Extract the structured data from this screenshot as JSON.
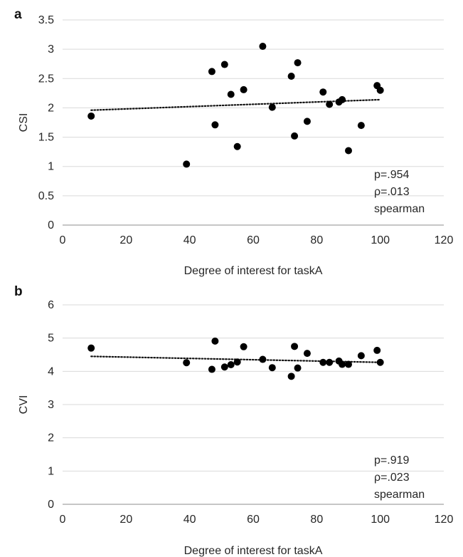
{
  "chart_data": [
    {
      "type": "scatter",
      "panel_label": "a",
      "xlabel": "Degree of interest for taskA",
      "ylabel": "CSI",
      "xlim": [
        0,
        120
      ],
      "ylim": [
        0,
        3.5
      ],
      "x_ticks": [
        "0",
        "20",
        "40",
        "60",
        "80",
        "100",
        "120"
      ],
      "y_ticks": [
        "0",
        "0.5",
        "1",
        "1.5",
        "2",
        "2.5",
        "3",
        "3.5"
      ],
      "grid": "horizontal",
      "trendline": "linear dotted",
      "trend_start": [
        9,
        1.96
      ],
      "trend_end": [
        100,
        2.14
      ],
      "annotation": [
        "p=.954",
        "ρ=.013",
        "spearman"
      ],
      "points": [
        {
          "x": 9,
          "y": 1.86
        },
        {
          "x": 39,
          "y": 1.04
        },
        {
          "x": 47,
          "y": 2.62
        },
        {
          "x": 48,
          "y": 1.71
        },
        {
          "x": 51,
          "y": 2.74
        },
        {
          "x": 53,
          "y": 2.23
        },
        {
          "x": 55,
          "y": 1.34
        },
        {
          "x": 57,
          "y": 2.31
        },
        {
          "x": 63,
          "y": 3.05
        },
        {
          "x": 66,
          "y": 2.01
        },
        {
          "x": 72,
          "y": 2.54
        },
        {
          "x": 73,
          "y": 1.52
        },
        {
          "x": 74,
          "y": 2.77
        },
        {
          "x": 77,
          "y": 1.77
        },
        {
          "x": 82,
          "y": 2.27
        },
        {
          "x": 84,
          "y": 2.06
        },
        {
          "x": 87,
          "y": 2.1
        },
        {
          "x": 88,
          "y": 2.14
        },
        {
          "x": 90,
          "y": 1.27
        },
        {
          "x": 94,
          "y": 1.7
        },
        {
          "x": 99,
          "y": 2.38
        },
        {
          "x": 100,
          "y": 2.3
        }
      ]
    },
    {
      "type": "scatter",
      "panel_label": "b",
      "xlabel": "Degree of interest for taskA",
      "ylabel": "CVI",
      "xlim": [
        0,
        120
      ],
      "ylim": [
        0,
        6
      ],
      "x_ticks": [
        "0",
        "20",
        "40",
        "60",
        "80",
        "100",
        "120"
      ],
      "y_ticks": [
        "0",
        "1",
        "2",
        "3",
        "4",
        "5",
        "6"
      ],
      "grid": "horizontal",
      "trendline": "linear dotted",
      "trend_start": [
        9,
        4.45
      ],
      "trend_end": [
        100,
        4.27
      ],
      "annotation": [
        "p=.919",
        "ρ=.023",
        "spearman"
      ],
      "points": [
        {
          "x": 9,
          "y": 4.7
        },
        {
          "x": 39,
          "y": 4.26
        },
        {
          "x": 47,
          "y": 4.06
        },
        {
          "x": 48,
          "y": 4.91
        },
        {
          "x": 51,
          "y": 4.13
        },
        {
          "x": 53,
          "y": 4.2
        },
        {
          "x": 55,
          "y": 4.28
        },
        {
          "x": 57,
          "y": 4.74
        },
        {
          "x": 63,
          "y": 4.36
        },
        {
          "x": 66,
          "y": 4.11
        },
        {
          "x": 72,
          "y": 3.85
        },
        {
          "x": 73,
          "y": 4.75
        },
        {
          "x": 74,
          "y": 4.1
        },
        {
          "x": 77,
          "y": 4.54
        },
        {
          "x": 82,
          "y": 4.27
        },
        {
          "x": 84,
          "y": 4.27
        },
        {
          "x": 87,
          "y": 4.31
        },
        {
          "x": 88,
          "y": 4.21
        },
        {
          "x": 90,
          "y": 4.21
        },
        {
          "x": 94,
          "y": 4.47
        },
        {
          "x": 99,
          "y": 4.63
        },
        {
          "x": 100,
          "y": 4.27
        }
      ]
    }
  ]
}
